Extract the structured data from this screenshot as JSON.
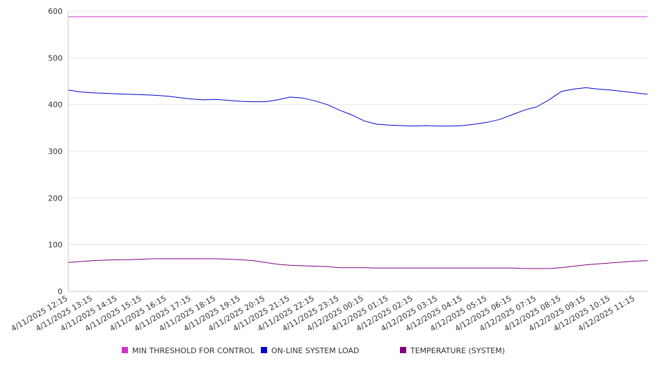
{
  "chart_data": {
    "type": "line",
    "ylim": [
      0,
      600
    ],
    "y_ticks": [
      "0",
      "100",
      "200",
      "300",
      "400",
      "500",
      "600"
    ],
    "x_ticks": [
      "4/11/2025 12:15",
      "4/11/2025 13:15",
      "4/11/2025 14:15",
      "4/11/2025 15:15",
      "4/11/2025 16:15",
      "4/11/2025 17:15",
      "4/11/2025 18:15",
      "4/11/2025 19:15",
      "4/11/2025 20:15",
      "4/11/2025 21:15",
      "4/11/2025 22:15",
      "4/11/2025 23:15",
      "4/12/2025 00:15",
      "4/12/2025 01:15",
      "4/12/2025 02:15",
      "4/12/2025 03:15",
      "4/12/2025 04:15",
      "4/12/2025 05:15",
      "4/12/2025 06:15",
      "4/12/2025 07:15",
      "4/12/2025 08:15",
      "4/12/2025 09:15",
      "4/12/2025 10:15",
      "4/12/2025 11:15"
    ],
    "x": [
      "4/11/2025 12:15",
      "4/11/2025 12:45",
      "4/11/2025 13:15",
      "4/11/2025 13:45",
      "4/11/2025 14:15",
      "4/11/2025 14:45",
      "4/11/2025 15:15",
      "4/11/2025 15:45",
      "4/11/2025 16:15",
      "4/11/2025 16:45",
      "4/11/2025 17:15",
      "4/11/2025 17:45",
      "4/11/2025 18:15",
      "4/11/2025 18:45",
      "4/11/2025 19:15",
      "4/11/2025 19:45",
      "4/11/2025 20:15",
      "4/11/2025 20:45",
      "4/11/2025 21:15",
      "4/11/2025 21:45",
      "4/11/2025 22:15",
      "4/11/2025 22:45",
      "4/11/2025 23:15",
      "4/11/2025 23:45",
      "4/12/2025 00:15",
      "4/12/2025 00:45",
      "4/12/2025 01:15",
      "4/12/2025 01:45",
      "4/12/2025 02:15",
      "4/12/2025 02:45",
      "4/12/2025 03:15",
      "4/12/2025 03:45",
      "4/12/2025 04:15",
      "4/12/2025 04:45",
      "4/12/2025 05:15",
      "4/12/2025 05:45",
      "4/12/2025 06:15",
      "4/12/2025 06:45",
      "4/12/2025 07:15",
      "4/12/2025 07:45",
      "4/12/2025 08:15",
      "4/12/2025 08:45",
      "4/12/2025 09:15",
      "4/12/2025 09:45",
      "4/12/2025 10:15",
      "4/12/2025 10:45",
      "4/12/2025 11:15",
      "4/12/2025 11:45"
    ],
    "series": [
      {
        "name": "MIN THRESHOLD FOR CONTROL",
        "color": "#cc33cc",
        "values": [
          588,
          588,
          588,
          588,
          588,
          588,
          588,
          588,
          588,
          588,
          588,
          588,
          588,
          588,
          588,
          588,
          588,
          588,
          588,
          588,
          588,
          588,
          588,
          588,
          588,
          588,
          588,
          588,
          588,
          588,
          588,
          588,
          588,
          588,
          588,
          588,
          588,
          588,
          588,
          588,
          588,
          588,
          588,
          588,
          588,
          588,
          588,
          588
        ]
      },
      {
        "name": "ON-LINE SYSTEM LOAD",
        "color": "#0000cc",
        "values": [
          431,
          427,
          425,
          424,
          423,
          422,
          421,
          420,
          418,
          415,
          412,
          410,
          411,
          409,
          407,
          406,
          406,
          410,
          416,
          414,
          408,
          400,
          388,
          378,
          365,
          358,
          356,
          355,
          354,
          355,
          354,
          354,
          355,
          358,
          362,
          368,
          378,
          388,
          395,
          410,
          428,
          433,
          436,
          433,
          431,
          428,
          425,
          422
        ]
      },
      {
        "name": "TEMPERATURE (SYSTEM)",
        "color": "#800080",
        "values": [
          62,
          64,
          66,
          67,
          68,
          68,
          69,
          70,
          70,
          70,
          70,
          70,
          70,
          69,
          68,
          66,
          62,
          58,
          56,
          55,
          54,
          53,
          51,
          51,
          51,
          50,
          50,
          50,
          50,
          50,
          50,
          50,
          50,
          50,
          50,
          50,
          50,
          49,
          49,
          49,
          51,
          54,
          57,
          59,
          61,
          63,
          65,
          66
        ]
      }
    ],
    "grid": true,
    "legend_position": "bottom"
  }
}
